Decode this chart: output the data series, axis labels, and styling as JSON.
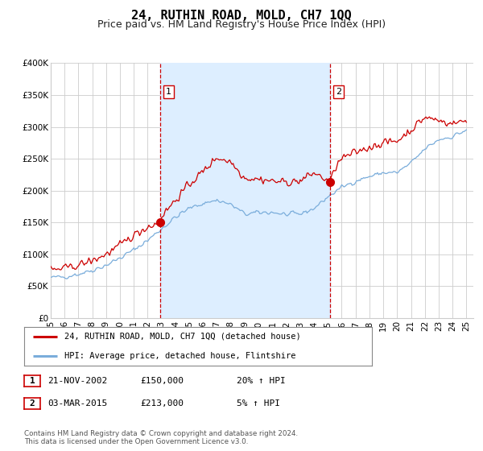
{
  "title": "24, RUTHIN ROAD, MOLD, CH7 1QQ",
  "subtitle": "Price paid vs. HM Land Registry's House Price Index (HPI)",
  "ylim": [
    0,
    400000
  ],
  "yticks": [
    0,
    50000,
    100000,
    150000,
    200000,
    250000,
    300000,
    350000,
    400000
  ],
  "ytick_labels": [
    "£0",
    "£50K",
    "£100K",
    "£150K",
    "£200K",
    "£250K",
    "£300K",
    "£350K",
    "£400K"
  ],
  "hpi_color": "#7aaddb",
  "price_color": "#cc0000",
  "vline_color": "#cc0000",
  "shade_color": "#ddeeff",
  "grid_color": "#cccccc",
  "background_color": "#ffffff",
  "sale1_date": 2002.9,
  "sale1_price": 150000,
  "sale1_label": "1",
  "sale2_date": 2015.17,
  "sale2_price": 213000,
  "sale2_label": "2",
  "legend_items": [
    {
      "label": "24, RUTHIN ROAD, MOLD, CH7 1QQ (detached house)",
      "color": "#cc0000"
    },
    {
      "label": "HPI: Average price, detached house, Flintshire",
      "color": "#7aaddb"
    }
  ],
  "table_rows": [
    {
      "num": "1",
      "date": "21-NOV-2002",
      "price": "£150,000",
      "hpi": "20% ↑ HPI"
    },
    {
      "num": "2",
      "date": "03-MAR-2015",
      "price": "£213,000",
      "hpi": "5% ↑ HPI"
    }
  ],
  "footer": "Contains HM Land Registry data © Crown copyright and database right 2024.\nThis data is licensed under the Open Government Licence v3.0.",
  "title_fontsize": 11,
  "subtitle_fontsize": 9,
  "tick_fontsize": 7.5,
  "xlim": [
    1995.0,
    2025.5
  ],
  "xticks": [
    1995,
    1996,
    1997,
    1998,
    1999,
    2000,
    2001,
    2002,
    2003,
    2004,
    2005,
    2006,
    2007,
    2008,
    2009,
    2010,
    2011,
    2012,
    2013,
    2014,
    2015,
    2016,
    2017,
    2018,
    2019,
    2020,
    2021,
    2022,
    2023,
    2024,
    2025
  ]
}
